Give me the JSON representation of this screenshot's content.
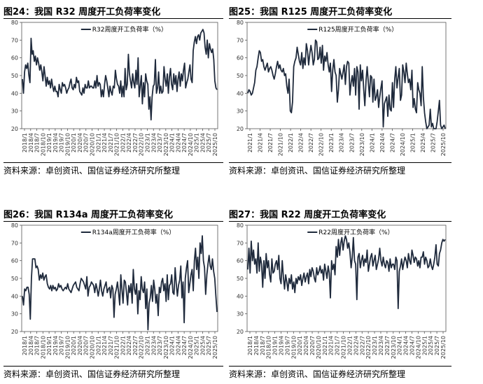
{
  "panels": [
    {
      "title": "图24：我国 R32 周度开工负荷率变化",
      "source": "资料来源：卓创资讯、国信证券经济研究所整理",
      "chart_data": {
        "type": "line",
        "legend_position": "top-center",
        "grid": false,
        "ylim": [
          20,
          80
        ],
        "yticks": [
          "20",
          "30",
          "40",
          "50",
          "60",
          "70",
          "80"
        ],
        "xticks": [
          "2018/1",
          "2018/4",
          "2018/7",
          "2018/10",
          "2019/1",
          "2019/4",
          "2019/7",
          "2019/10",
          "2020/1",
          "2020/4",
          "2020/7",
          "2020/10",
          "2021/1",
          "2021/4",
          "2021/7",
          "2021/10",
          "2022/1",
          "2022/4",
          "2022/7",
          "2022/10",
          "2023/1",
          "2023/4",
          "2023/7",
          "2023/10",
          "2024/1",
          "2024/4",
          "2024/7",
          "2024/10",
          "2025/1",
          "2025/4",
          "2025/7",
          "2025/10"
        ],
        "series": [
          {
            "name": "R32周度开工负荷率（%）",
            "values": [
              48,
              40,
              52,
              56,
              54,
              57,
              50,
              46,
              71,
              62,
              64,
              58,
              61,
              56,
              60,
              57,
              53,
              56,
              52,
              47,
              55,
              50,
              44,
              49,
              45,
              47,
              43,
              48,
              44,
              41,
              44,
              41,
              41,
              38,
              45,
              42,
              40,
              46,
              44,
              45,
              43,
              40,
              42,
              43,
              46,
              48,
              43,
              42,
              45,
              43,
              49,
              46,
              47,
              41,
              40,
              39,
              43,
              40,
              45,
              43,
              43,
              47,
              43,
              44,
              44,
              43,
              43,
              47,
              43,
              50,
              44,
              46,
              45,
              38,
              42,
              38,
              45,
              50,
              47,
              43,
              38,
              44,
              41,
              39,
              44,
              43,
              53,
              48,
              45,
              44,
              40,
              47,
              38,
              44,
              38,
              54,
              42,
              45,
              62,
              51,
              47,
              43,
              51,
              46,
              43,
              53,
              45,
              60,
              38,
              44,
              50,
              34,
              46,
              38,
              51,
              47,
              45,
              31,
              38,
              25,
              38,
              44,
              45,
              59,
              40,
              43,
              52,
              40,
              44,
              40,
              41,
              55,
              48,
              44,
              51,
              40,
              49,
              54,
              45,
              42,
              51,
              45,
              50,
              41,
              48,
              52,
              44,
              51,
              47,
              53,
              57,
              43,
              46,
              48,
              52,
              56,
              48,
              46,
              64,
              69,
              72,
              68,
              72,
              73,
              70,
              74,
              75,
              76,
              74,
              66,
              62,
              70,
              60,
              68,
              65,
              63,
              65,
              59,
              47,
              43,
              42
            ]
          }
        ]
      }
    },
    {
      "title": "图25：我国 R125 周度开工负荷率变化",
      "source": "资料来源：卓创资讯、国信证券经济研究所整理",
      "chart_data": {
        "type": "line",
        "legend_position": "top-center",
        "grid": false,
        "ylim": [
          20,
          80
        ],
        "yticks": [
          "20",
          "30",
          "40",
          "50",
          "60",
          "70",
          "80"
        ],
        "xticks": [
          "2021/1",
          "2021/4",
          "2021/7",
          "2021/10",
          "2022/1",
          "2022/4",
          "2022/7",
          "2022/10",
          "2023/1",
          "2023/4",
          "2023/7",
          "2023/10",
          "2024/1",
          "2024/4",
          "2024/7",
          "2024/10",
          "2025/1",
          "2025/4",
          "2025/7",
          "2025/10"
        ],
        "series": [
          {
            "name": "R125周度开工负荷率（%）",
            "values": [
              40,
              42,
              41,
              39,
              40,
              43,
              46,
              53,
              55,
              60,
              64,
              63,
              58,
              59,
              55,
              53,
              55,
              57,
              52,
              54,
              55,
              53,
              50,
              48,
              51,
              55,
              58,
              54,
              56,
              53,
              52,
              54,
              50,
              51,
              44,
              40,
              48,
              30,
              29,
              35,
              55,
              58,
              60,
              66,
              62,
              58,
              56,
              63,
              54,
              60,
              56,
              68,
              64,
              56,
              62,
              67,
              63,
              56,
              59,
              70,
              69,
              59,
              60,
              66,
              57,
              67,
              53,
              61,
              58,
              63,
              56,
              52,
              57,
              41,
              53,
              59,
              52,
              50,
              35,
              42,
              54,
              51,
              48,
              52,
              56,
              45,
              55,
              58,
              57,
              39,
              46,
              50,
              44,
              54,
              39,
              55,
              52,
              31,
              56,
              47,
              53,
              42,
              33,
              47,
              55,
              46,
              38,
              50,
              49,
              35,
              48,
              36,
              38,
              42,
              32,
              38,
              43,
              47,
              21,
              34,
              36,
              38,
              27,
              39,
              31,
              30,
              46,
              32,
              48,
              55,
              43,
              49,
              54,
              36,
              39,
              56,
              52,
              46,
              57,
              51,
              46,
              48,
              42,
              53,
              32,
              37,
              31,
              29,
              46,
              42,
              40,
              33,
              55,
              38,
              29,
              24,
              20,
              21,
              22,
              31,
              21,
              23,
              20,
              20,
              20,
              24,
              30,
              36,
              22,
              20,
              21,
              22,
              20
            ]
          }
        ]
      }
    },
    {
      "title": "图26：我国 R134a 周度开工负荷率变化",
      "source": "资料来源：卓创资讯、国信证券经济研究所整理",
      "chart_data": {
        "type": "line",
        "legend_position": "top-center",
        "grid": false,
        "ylim": [
          20,
          80
        ],
        "yticks": [
          "20",
          "30",
          "40",
          "50",
          "60",
          "70",
          "80"
        ],
        "xticks": [
          "2018/1",
          "2018/4",
          "2018/7",
          "2018/10",
          "2019/1",
          "2019/4",
          "2019/7",
          "2019/10",
          "2020/1",
          "2020/4",
          "2020/7",
          "2020/10",
          "2021/1",
          "2021/4",
          "2021/7",
          "2021/10",
          "2022/1",
          "2022/4",
          "2022/7",
          "2022/10",
          "2023/1",
          "2023/4",
          "2023/7",
          "2023/10",
          "2024/1",
          "2024/4",
          "2024/7",
          "2024/10",
          "2025/1",
          "2025/4",
          "2025/7",
          "2025/10"
        ],
        "series": [
          {
            "name": "R134a周度开工负荷率（%）",
            "values": [
              40,
              35,
              44,
              43,
              45,
              45,
              41,
              27,
              50,
              61,
              61,
              61,
              56,
              57,
              55,
              49,
              52,
              50,
              53,
              49,
              51,
              52,
              47,
              45,
              44,
              46,
              43,
              46,
              44,
              45,
              43,
              44,
              47,
              45,
              46,
              44,
              43,
              44,
              45,
              44,
              47,
              44,
              43,
              42,
              44,
              46,
              47,
              48,
              45,
              44,
              43,
              47,
              50,
              49,
              48,
              46,
              44,
              51,
              40,
              45,
              46,
              48,
              47,
              46,
              42,
              47,
              44,
              40,
              44,
              49,
              43,
              40,
              44,
              46,
              48,
              42,
              44,
              45,
              39,
              46,
              44,
              28,
              41,
              44,
              48,
              42,
              35,
              52,
              44,
              36,
              49,
              48,
              42,
              35,
              46,
              42,
              47,
              36,
              55,
              44,
              41,
              47,
              30,
              43,
              38,
              51,
              44,
              42,
              48,
              33,
              44,
              21,
              36,
              39,
              46,
              37,
              49,
              44,
              36,
              41,
              29,
              45,
              42,
              48,
              50,
              43,
              47,
              37,
              52,
              38,
              46,
              47,
              52,
              42,
              41,
              56,
              47,
              40,
              46,
              49,
              57,
              39,
              48,
              25,
              50,
              56,
              60,
              42,
              47,
              52,
              55,
              43,
              60,
              67,
              55,
              62,
              50,
              70,
              64,
              74,
              60,
              56,
              41,
              52,
              58,
              63,
              57,
              55,
              61,
              54,
              50,
              40,
              31
            ]
          }
        ]
      }
    },
    {
      "title": "图27：我国 R22 周度开工负荷率变化",
      "source": "资料来源：卓创资讯、国信证券经济研究所整理",
      "chart_data": {
        "type": "line",
        "legend_position": "top-center",
        "grid": false,
        "ylim": [
          20,
          80
        ],
        "yticks": [
          "20",
          "30",
          "40",
          "50",
          "60",
          "70",
          "80"
        ],
        "xticks": [
          "2018/1",
          "2018/4",
          "2018/7",
          "2018/10",
          "2019/1",
          "2019/4",
          "2019/7",
          "2019/10",
          "2020/1",
          "2020/4",
          "2020/7",
          "2020/10",
          "2021/1",
          "2021/4",
          "2021/7",
          "2021/10",
          "2022/1",
          "2022/4",
          "2022/7",
          "2022/10",
          "2023/1",
          "2023/4",
          "2023/7",
          "2023/10",
          "2024/1",
          "2024/4",
          "2024/7",
          "2024/10",
          "2025/1",
          "2025/4",
          "2025/7",
          "2025/10"
        ],
        "series": [
          {
            "name": "R22周度开工负荷率（%）",
            "values": [
              55,
              67,
              53,
              71,
              60,
              66,
              58,
              61,
              53,
              70,
              54,
              62,
              58,
              45,
              60,
              50,
              64,
              56,
              60,
              52,
              48,
              61,
              53,
              54,
              58,
              60,
              55,
              63,
              50,
              47,
              60,
              51,
              44,
              52,
              48,
              43,
              50,
              47,
              52,
              44,
              48,
              42,
              50,
              47,
              51,
              49,
              52,
              46,
              50,
              53,
              48,
              51,
              53,
              47,
              55,
              51,
              56,
              54,
              50,
              48,
              56,
              52,
              54,
              57,
              53,
              55,
              49,
              58,
              54,
              50,
              57,
              53,
              39,
              60,
              55,
              58,
              52,
              68,
              62,
              72,
              63,
              70,
              73,
              66,
              71,
              74,
              72,
              67,
              70,
              65,
              56,
              62,
              73,
              60,
              58,
              38,
              62,
              64,
              56,
              60,
              63,
              57,
              61,
              59,
              66,
              54,
              58,
              62,
              64,
              57,
              60,
              63,
              55,
              58,
              61,
              67,
              60,
              57,
              62,
              58,
              56,
              60,
              59,
              54,
              61,
              56,
              58,
              58,
              55,
              62,
              60,
              33,
              54,
              57,
              61,
              55,
              59,
              62,
              60,
              56,
              64,
              60,
              58,
              66,
              63,
              59,
              62,
              61,
              57,
              60,
              56,
              62,
              62,
              65,
              58,
              62,
              60,
              56,
              57,
              61,
              57,
              55,
              58,
              62,
              69,
              58,
              57,
              64,
              66,
              70,
              72,
              71,
              72
            ]
          }
        ]
      }
    }
  ]
}
